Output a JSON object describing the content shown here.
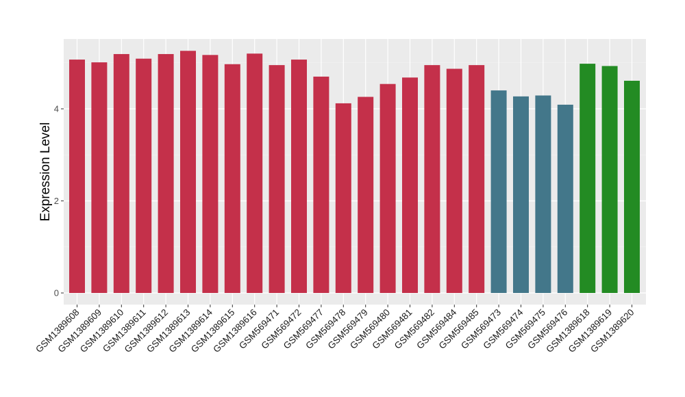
{
  "chart_data": {
    "type": "bar",
    "title": "",
    "xlabel": "",
    "ylabel": "Expression Level",
    "ylim": [
      0,
      5.5
    ],
    "y_ticks": [
      0,
      2,
      4
    ],
    "grid": true,
    "legend": "none",
    "colors": {
      "panel_background": "#ebebeb",
      "grid_major": "#ffffff",
      "grid_minor": "#f5f5f5",
      "group_red": "#c4304a",
      "group_teal": "#43778a",
      "group_green": "#238b23"
    },
    "categories": [
      "GSM1389608",
      "GSM1389609",
      "GSM1389610",
      "GSM1389611",
      "GSM1389612",
      "GSM1389613",
      "GSM1389614",
      "GSM1389615",
      "GSM1389616",
      "GSM569471",
      "GSM569472",
      "GSM569477",
      "GSM569478",
      "GSM569479",
      "GSM569480",
      "GSM569481",
      "GSM569482",
      "GSM569484",
      "GSM569485",
      "GSM569473",
      "GSM569474",
      "GSM569475",
      "GSM569476",
      "GSM1389618",
      "GSM1389619",
      "GSM1389620"
    ],
    "values": [
      5.07,
      5.01,
      5.19,
      5.09,
      5.19,
      5.26,
      5.17,
      4.97,
      5.2,
      4.95,
      5.07,
      4.7,
      4.12,
      4.26,
      4.54,
      4.68,
      4.95,
      4.87,
      4.95,
      4.4,
      4.27,
      4.29,
      4.09,
      4.98,
      4.93,
      4.61
    ],
    "bar_colors": [
      "#c4304a",
      "#c4304a",
      "#c4304a",
      "#c4304a",
      "#c4304a",
      "#c4304a",
      "#c4304a",
      "#c4304a",
      "#c4304a",
      "#c4304a",
      "#c4304a",
      "#c4304a",
      "#c4304a",
      "#c4304a",
      "#c4304a",
      "#c4304a",
      "#c4304a",
      "#c4304a",
      "#c4304a",
      "#43778a",
      "#43778a",
      "#43778a",
      "#43778a",
      "#238b23",
      "#238b23",
      "#238b23"
    ]
  }
}
